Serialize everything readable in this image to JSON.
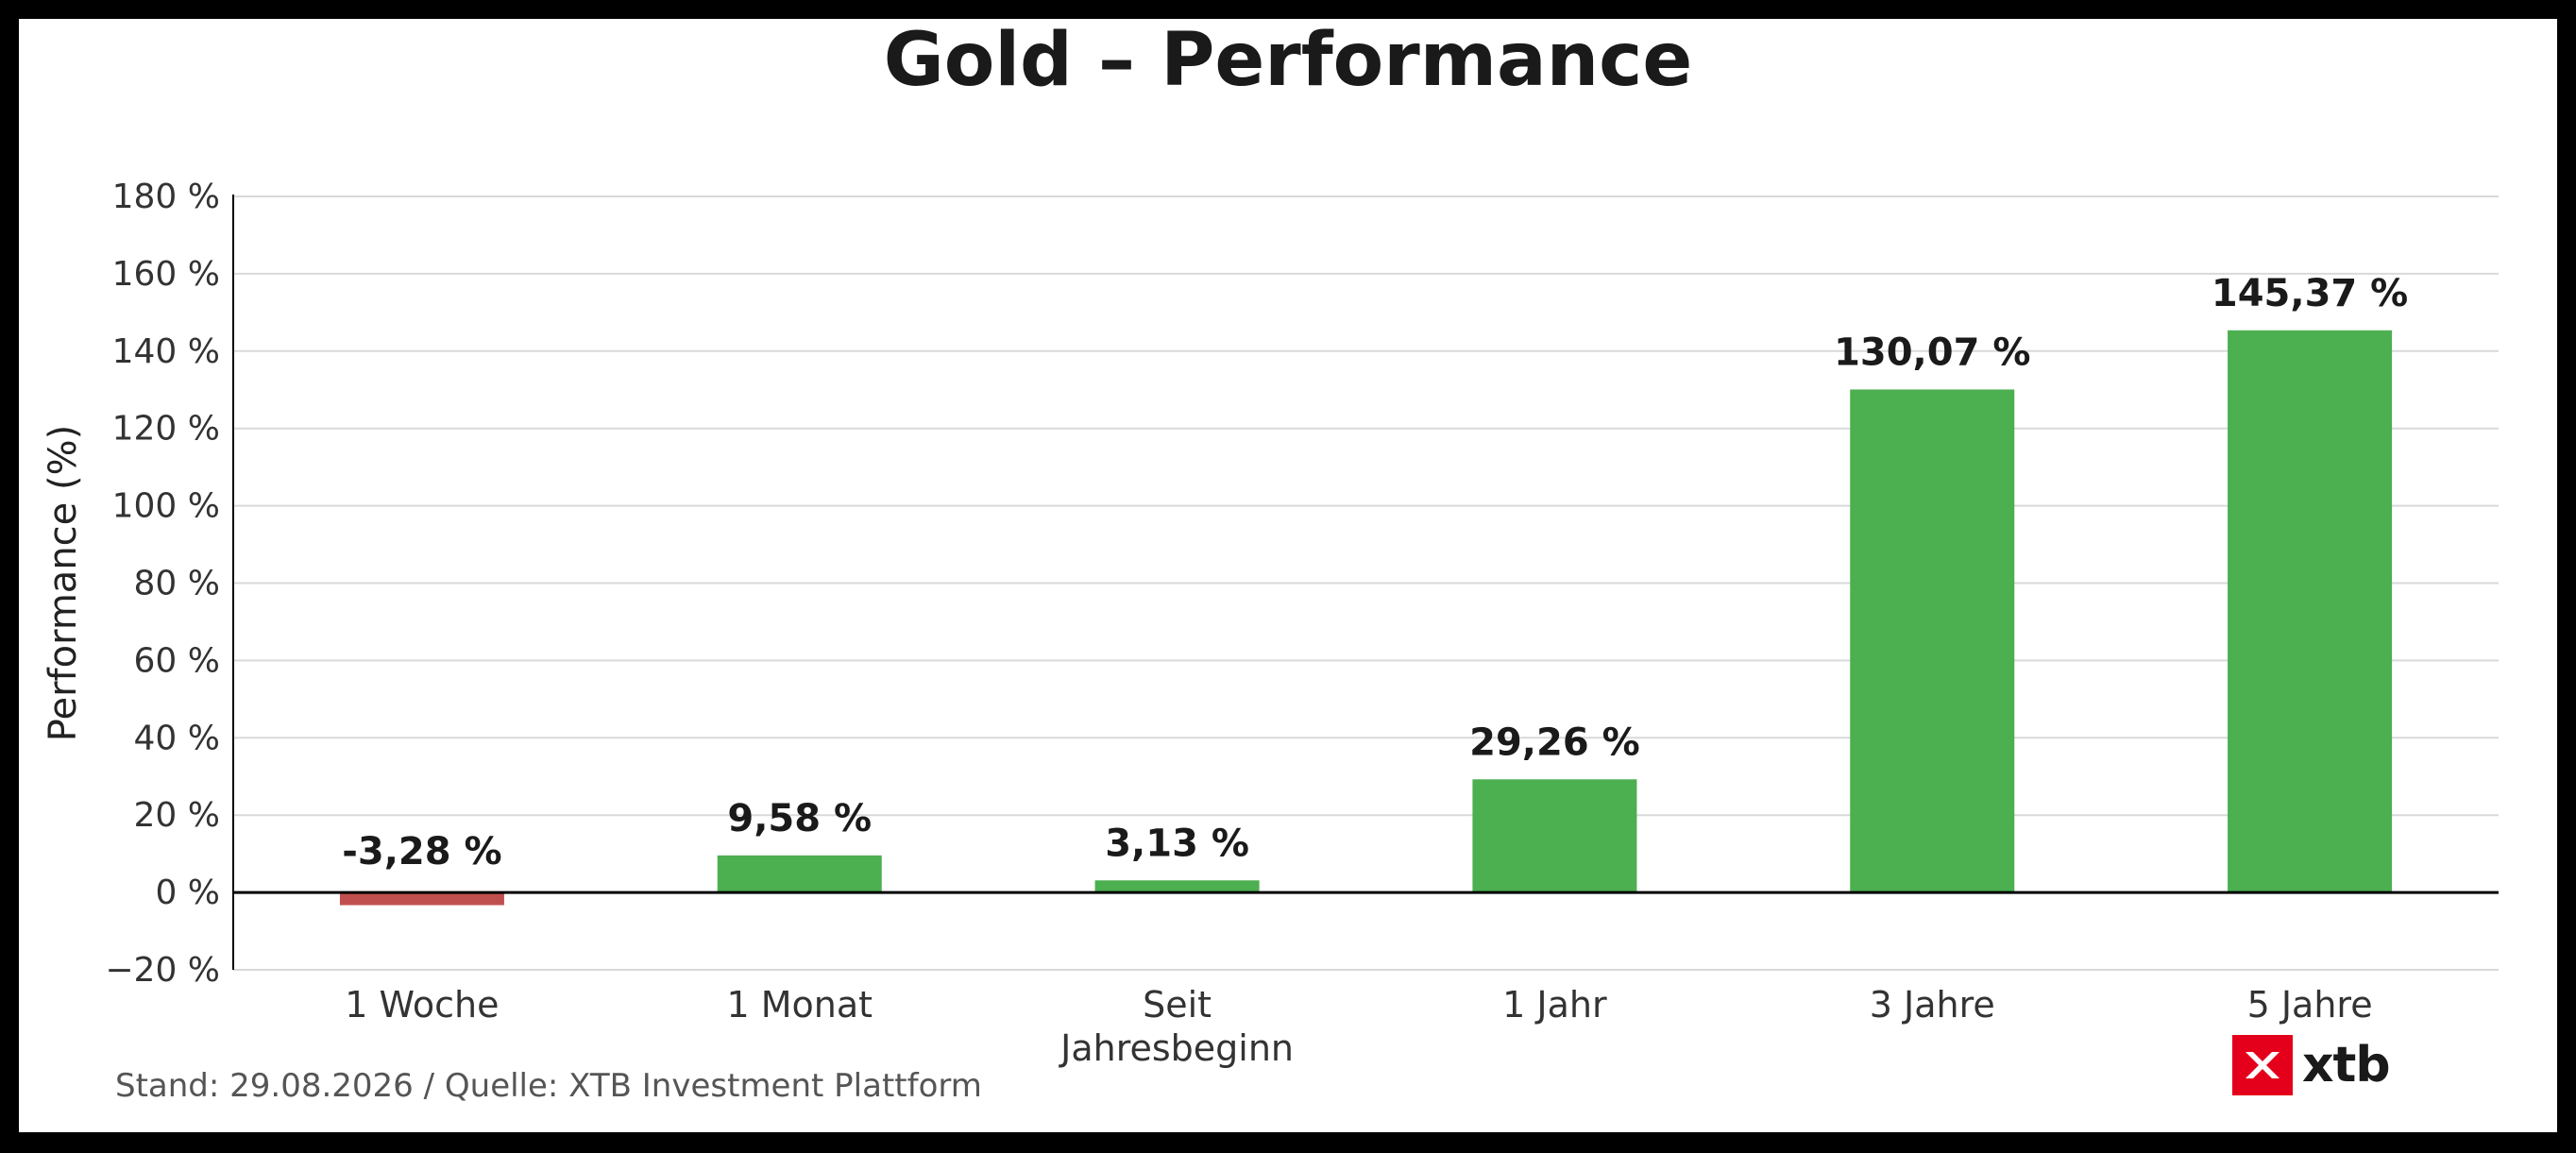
{
  "chart_data": {
    "type": "bar",
    "title": "Gold – Performance",
    "ylabel": "Performance (%)",
    "xlabel": "",
    "categories": [
      [
        "1 Woche"
      ],
      [
        "1 Monat"
      ],
      [
        "Seit",
        "Jahresbeginn"
      ],
      [
        "1 Jahr"
      ],
      [
        "3 Jahre"
      ],
      [
        "5 Jahre"
      ]
    ],
    "values": [
      -3.28,
      9.58,
      3.13,
      29.26,
      130.07,
      145.37
    ],
    "value_labels": [
      "-3,28 %",
      "9,58 %",
      "3,13 %",
      "29,26 %",
      "130,07 %",
      "145,37 %"
    ],
    "ylim": [
      -20,
      180
    ],
    "yticks": [
      -20,
      0,
      20,
      40,
      60,
      80,
      100,
      120,
      140,
      160,
      180
    ],
    "ytick_labels": [
      "−20 %",
      "0 %",
      "20 %",
      "40 %",
      "60 %",
      "80 %",
      "100 %",
      "120 %",
      "140 %",
      "160 %",
      "180 %"
    ],
    "grid": true,
    "colors": {
      "positive": "#4caf50",
      "negative": "#c0504d",
      "grid": "#d9d9d9",
      "axis": "#000000"
    }
  },
  "footer": {
    "source": "Stand: 29.08.2026 / Quelle: XTB Investment Plattform"
  },
  "logo": {
    "wordmark": "xtb",
    "color": "#e4001b",
    "icon": "xtb-logo-icon"
  }
}
